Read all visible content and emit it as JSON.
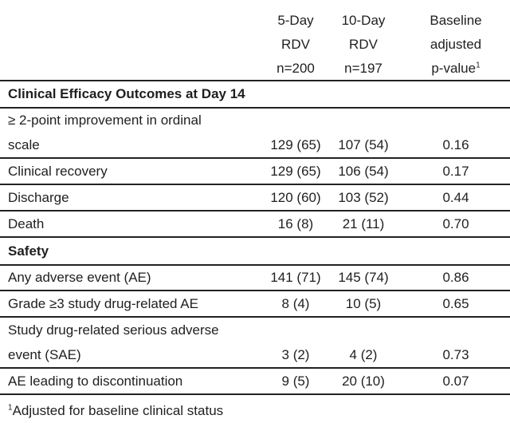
{
  "header": {
    "col1": [
      "5-Day",
      "RDV",
      "n=200"
    ],
    "col2": [
      "10-Day",
      "RDV",
      "n=197"
    ],
    "col3": [
      "Baseline",
      "adjusted",
      "p-value"
    ],
    "col3_sup": "1"
  },
  "sections": [
    {
      "title": "Clinical Efficacy Outcomes at Day 14",
      "rows": [
        {
          "label": [
            "≥ 2-point improvement in ordinal",
            "scale"
          ],
          "v1": "129 (65)",
          "v2": "107 (54)",
          "p": "0.16"
        },
        {
          "label": [
            "Clinical recovery"
          ],
          "v1": "129 (65)",
          "v2": "106 (54)",
          "p": "0.17"
        },
        {
          "label": [
            "Discharge"
          ],
          "v1": "120 (60)",
          "v2": "103 (52)",
          "p": "0.44"
        },
        {
          "label": [
            "Death"
          ],
          "v1": "16 (8)",
          "v2": "21 (11)",
          "p": "0.70"
        }
      ]
    },
    {
      "title": "Safety",
      "rows": [
        {
          "label": [
            "Any adverse event (AE)"
          ],
          "v1": "141 (71)",
          "v2": "145 (74)",
          "p": "0.86"
        },
        {
          "label": [
            "Grade ≥3 study drug-related AE"
          ],
          "v1": "8 (4)",
          "v2": "10 (5)",
          "p": "0.65"
        },
        {
          "label": [
            "Study drug-related serious adverse",
            "event (SAE)"
          ],
          "v1": "3 (2)",
          "v2": "4 (2)",
          "p": "0.73"
        },
        {
          "label": [
            "AE leading to discontinuation"
          ],
          "v1": "9 (5)",
          "v2": "20 (10)",
          "p": "0.07"
        }
      ]
    }
  ],
  "footnote": {
    "sup": "1",
    "text": "Adjusted for baseline clinical status"
  }
}
